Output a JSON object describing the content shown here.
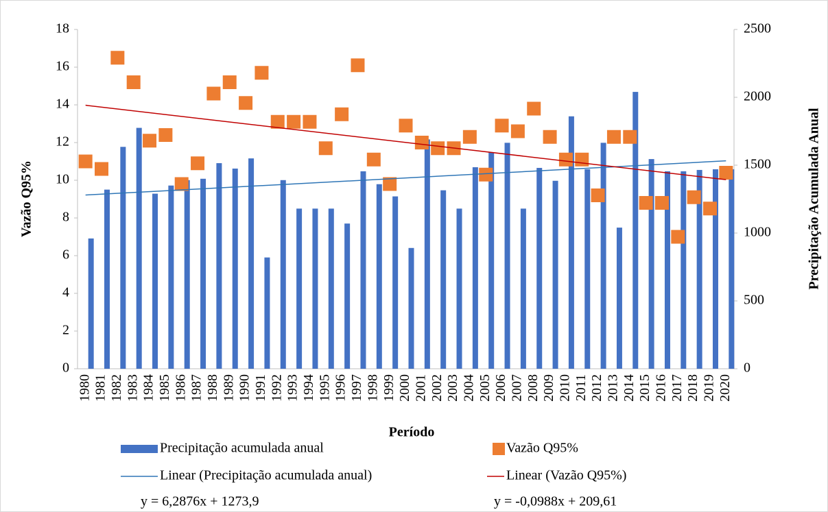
{
  "chart_data": {
    "type": "bar-scatter",
    "x_label": "Período",
    "y_label": "Vazão Q95%",
    "y2_label": "Precipitação Acumulada Anual",
    "categories": [
      "1980",
      "1981",
      "1982",
      "1983",
      "1984",
      "1985",
      "1986",
      "1987",
      "1988",
      "1989",
      "1990",
      "1991",
      "1992",
      "1993",
      "1994",
      "1995",
      "1996",
      "1997",
      "1998",
      "1999",
      "2000",
      "2001",
      "2002",
      "2003",
      "2004",
      "2005",
      "2006",
      "2007",
      "2008",
      "2009",
      "2010",
      "2011",
      "2012",
      "2013",
      "2014",
      "2015",
      "2016",
      "2017",
      "2018",
      "2019",
      "2020"
    ],
    "series": [
      {
        "name": "Precipitação acumulada anual",
        "type": "bar",
        "axis": "y2",
        "color": "#4472c4",
        "values": [
          960,
          1320,
          1635,
          1775,
          1290,
          1350,
          1390,
          1400,
          1515,
          1475,
          1550,
          820,
          1390,
          1180,
          1180,
          1180,
          1070,
          1455,
          1360,
          1270,
          890,
          1690,
          1315,
          1180,
          1485,
          1595,
          1665,
          1180,
          1480,
          1385,
          1860,
          1470,
          1665,
          1040,
          2040,
          1545,
          1455,
          1455,
          1465,
          1470,
          1470
        ]
      },
      {
        "name": "Vazão Q95%",
        "type": "scatter",
        "axis": "y",
        "color": "#ed7d31",
        "values": [
          11.0,
          10.6,
          16.5,
          15.2,
          12.1,
          12.4,
          9.8,
          10.9,
          14.6,
          15.2,
          14.1,
          15.7,
          13.1,
          13.1,
          13.1,
          11.7,
          13.5,
          16.1,
          11.1,
          9.8,
          12.9,
          12.0,
          11.7,
          11.7,
          12.3,
          10.3,
          12.9,
          12.6,
          13.8,
          12.3,
          11.1,
          11.1,
          9.2,
          12.3,
          12.3,
          8.8,
          8.8,
          7.0,
          9.1,
          8.5,
          10.4
        ]
      }
    ],
    "trendlines": [
      {
        "name": "Linear (Precipitação acumulada anual)",
        "axis": "y2",
        "color": "#2e75b6",
        "x": [
          1980,
          2020
        ],
        "values": [
          1280,
          1532
        ],
        "equation": "y = 6,2876x + 1273,9"
      },
      {
        "name": "Linear (Vazão Q95%)",
        "axis": "y",
        "color": "#c00000",
        "x": [
          1980,
          2020
        ],
        "values": [
          13.98,
          10.03
        ],
        "equation": "y = -0,0988x + 209,61"
      }
    ],
    "ylim": [
      0,
      18
    ],
    "yticks": [
      0,
      2,
      4,
      6,
      8,
      10,
      12,
      14,
      16,
      18
    ],
    "y2lim": [
      0,
      2500
    ],
    "y2ticks": [
      0,
      500,
      1000,
      1500,
      2000,
      2500
    ],
    "grid": false
  }
}
